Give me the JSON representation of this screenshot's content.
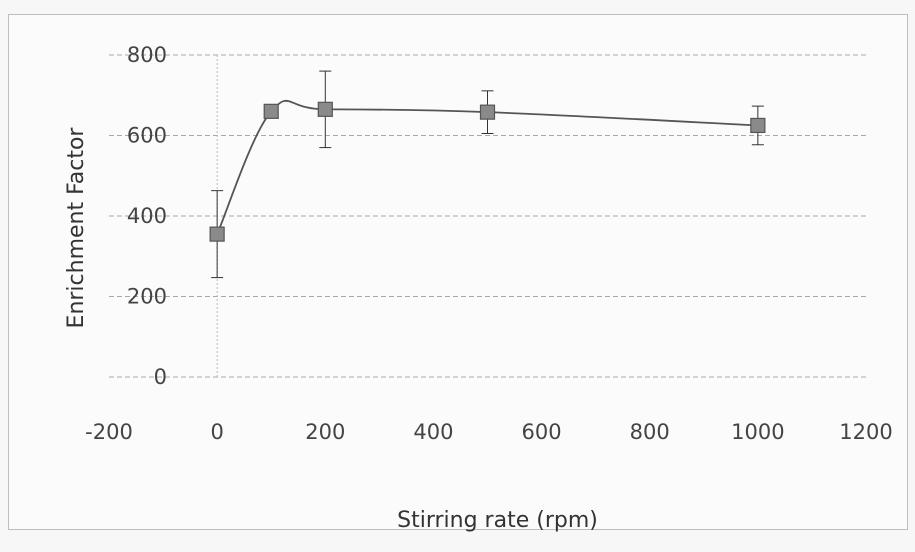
{
  "chart_data": {
    "type": "scatter",
    "title": "",
    "xlabel": "Stirring rate (rpm)",
    "ylabel": "Enrichment Factor",
    "xlim": [
      -200,
      1200
    ],
    "ylim": [
      0,
      800
    ],
    "xticks": [
      -200,
      0,
      200,
      400,
      600,
      800,
      1000,
      1200
    ],
    "yticks": [
      0,
      200,
      400,
      600,
      800
    ],
    "grid": "horizontal dashed",
    "legend": "none",
    "smoothed_line": true,
    "marker": "square",
    "colors": {
      "line": "#555555",
      "marker": "#8a8a8a",
      "grid": "#a8a8a8",
      "error_bar": "#333333"
    },
    "series": [
      {
        "x": [
          0,
          100,
          200,
          500,
          1000
        ],
        "y": [
          355,
          660,
          665,
          658,
          625
        ],
        "error": [
          108,
          0,
          95,
          53,
          48
        ]
      }
    ]
  }
}
